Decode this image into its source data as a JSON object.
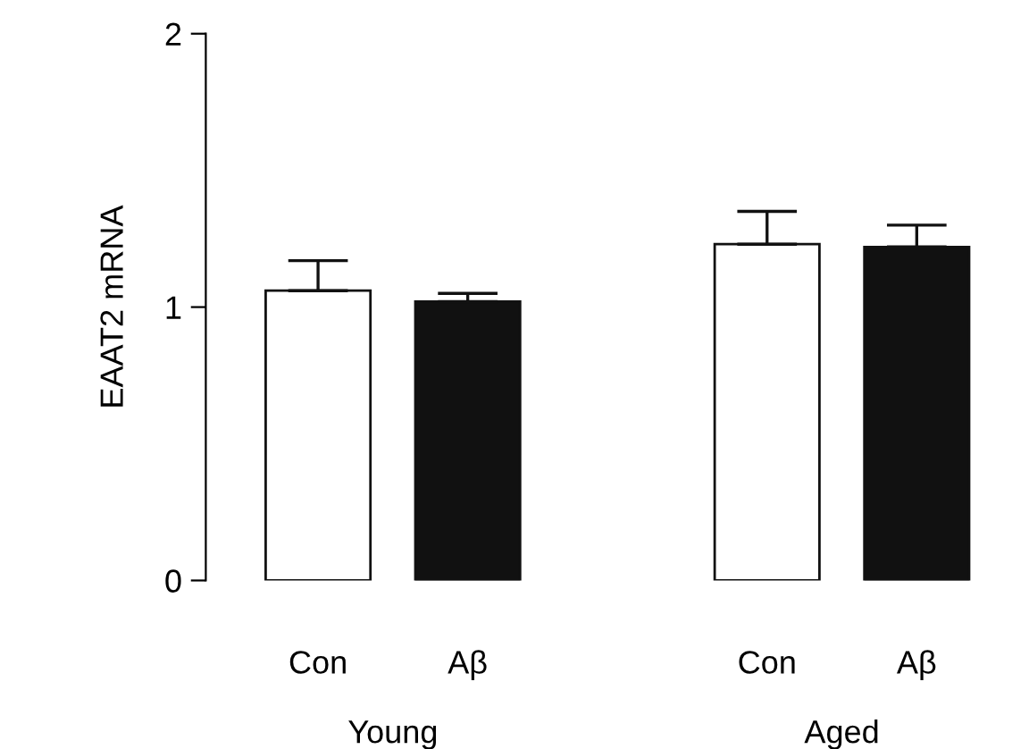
{
  "chart_data": {
    "type": "bar",
    "ylabel": "EAAT2 mRNA",
    "categories": [
      "Con",
      "Aβ",
      null,
      "Con",
      "Aβ"
    ],
    "values": [
      1.06,
      1.02,
      null,
      1.23,
      1.22
    ],
    "colors": [
      "#ffffff",
      "#111111",
      null,
      "#ffffff",
      "#111111"
    ],
    "errors": [
      [
        1.06,
        1.17
      ],
      [
        1.02,
        1.05
      ],
      null,
      [
        1.23,
        1.35
      ],
      [
        1.22,
        1.3
      ]
    ],
    "ylim": [
      0,
      2
    ],
    "yticks": [
      0,
      1,
      2
    ],
    "grid": false,
    "annotations": [
      "Young",
      "Aged"
    ]
  }
}
